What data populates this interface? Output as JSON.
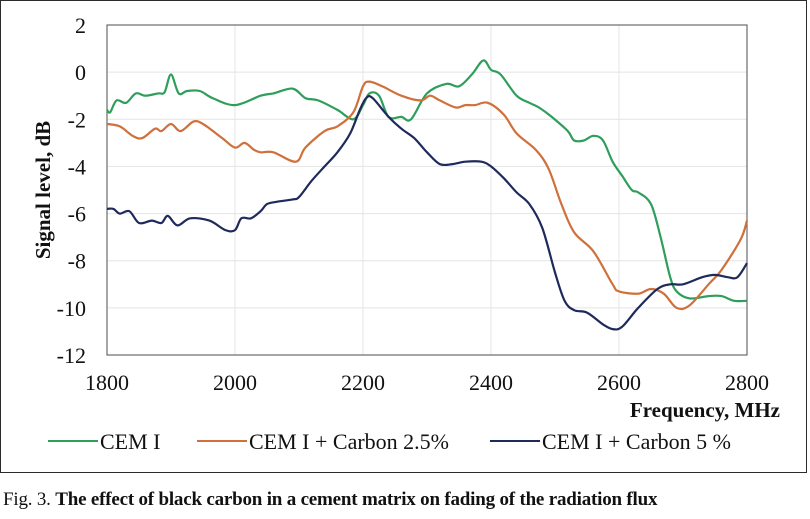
{
  "chart_data": {
    "type": "line",
    "title": "",
    "xlabel": "Frequency, MHz",
    "ylabel": "Signal level, dB",
    "xlim": [
      1800,
      2800
    ],
    "ylim": [
      -12,
      2
    ],
    "xticks": [
      1800,
      2000,
      2200,
      2400,
      2600,
      2800
    ],
    "yticks": [
      2,
      0,
      -2,
      -4,
      -6,
      -8,
      -10,
      -12
    ],
    "grid": true,
    "legend_position": "bottom",
    "series": [
      {
        "name": "CEM I",
        "color": "#2e9e5b",
        "x": [
          1800,
          1805,
          1815,
          1830,
          1845,
          1860,
          1880,
          1890,
          1900,
          1912,
          1925,
          1945,
          1965,
          2000,
          2040,
          2060,
          2090,
          2110,
          2130,
          2160,
          2185,
          2200,
          2210,
          2225,
          2240,
          2260,
          2275,
          2300,
          2330,
          2350,
          2370,
          2388,
          2400,
          2415,
          2440,
          2460,
          2475,
          2495,
          2520,
          2530,
          2545,
          2560,
          2575,
          2590,
          2605,
          2620,
          2630,
          2650,
          2665,
          2680,
          2690,
          2710,
          2740,
          2760,
          2780,
          2800
        ],
        "y": [
          -1.6,
          -1.7,
          -1.2,
          -1.3,
          -0.9,
          -1.0,
          -0.9,
          -0.85,
          -0.1,
          -0.9,
          -0.8,
          -0.8,
          -1.1,
          -1.4,
          -1.0,
          -0.9,
          -0.7,
          -1.1,
          -1.2,
          -1.6,
          -2.0,
          -1.4,
          -0.9,
          -1.0,
          -1.9,
          -1.9,
          -2.0,
          -0.9,
          -0.5,
          -0.6,
          -0.1,
          0.5,
          0.1,
          -0.1,
          -1.0,
          -1.3,
          -1.5,
          -1.9,
          -2.5,
          -2.9,
          -2.9,
          -2.7,
          -2.9,
          -3.8,
          -4.4,
          -5.0,
          -5.1,
          -5.6,
          -7.0,
          -8.7,
          -9.3,
          -9.6,
          -9.5,
          -9.5,
          -9.7,
          -9.7
        ]
      },
      {
        "name": "CEM I + Carbon 2.5%",
        "color": "#d0703a",
        "x": [
          1800,
          1820,
          1840,
          1855,
          1875,
          1885,
          1900,
          1915,
          1935,
          1950,
          1980,
          2000,
          2015,
          2030,
          2040,
          2060,
          2095,
          2110,
          2140,
          2160,
          2185,
          2200,
          2210,
          2230,
          2260,
          2290,
          2305,
          2320,
          2345,
          2360,
          2375,
          2395,
          2420,
          2440,
          2470,
          2490,
          2510,
          2530,
          2560,
          2590,
          2600,
          2630,
          2650,
          2670,
          2690,
          2710,
          2740,
          2760,
          2790,
          2800
        ],
        "y": [
          -2.2,
          -2.3,
          -2.7,
          -2.8,
          -2.4,
          -2.5,
          -2.2,
          -2.5,
          -2.1,
          -2.2,
          -2.8,
          -3.2,
          -3.0,
          -3.3,
          -3.4,
          -3.4,
          -3.8,
          -3.2,
          -2.5,
          -2.3,
          -1.7,
          -0.6,
          -0.4,
          -0.6,
          -1.0,
          -1.2,
          -1.0,
          -1.2,
          -1.5,
          -1.4,
          -1.4,
          -1.3,
          -1.8,
          -2.6,
          -3.3,
          -4.1,
          -5.6,
          -6.8,
          -7.6,
          -9.0,
          -9.3,
          -9.4,
          -9.2,
          -9.4,
          -10.0,
          -9.9,
          -9.0,
          -8.4,
          -7.1,
          -6.3
        ]
      },
      {
        "name": "CEM I + Carbon 5 %",
        "color": "#1f2a5c",
        "x": [
          1800,
          1810,
          1820,
          1835,
          1850,
          1870,
          1885,
          1895,
          1910,
          1930,
          1960,
          1985,
          2000,
          2010,
          2025,
          2040,
          2050,
          2065,
          2090,
          2100,
          2120,
          2140,
          2160,
          2180,
          2195,
          2205,
          2215,
          2240,
          2260,
          2280,
          2300,
          2320,
          2340,
          2360,
          2385,
          2400,
          2420,
          2440,
          2460,
          2480,
          2500,
          2515,
          2530,
          2550,
          2575,
          2590,
          2605,
          2630,
          2660,
          2680,
          2700,
          2730,
          2750,
          2770,
          2785,
          2800
        ],
        "y": [
          -5.8,
          -5.8,
          -6.0,
          -5.9,
          -6.4,
          -6.3,
          -6.4,
          -6.1,
          -6.5,
          -6.2,
          -6.3,
          -6.7,
          -6.7,
          -6.2,
          -6.2,
          -5.9,
          -5.6,
          -5.5,
          -5.4,
          -5.3,
          -4.6,
          -4.0,
          -3.4,
          -2.6,
          -1.6,
          -1.1,
          -1.1,
          -1.9,
          -2.4,
          -2.8,
          -3.4,
          -3.9,
          -3.9,
          -3.8,
          -3.8,
          -4.0,
          -4.5,
          -5.1,
          -5.6,
          -6.6,
          -8.5,
          -9.7,
          -10.1,
          -10.2,
          -10.7,
          -10.9,
          -10.8,
          -10.0,
          -9.2,
          -9.0,
          -9.0,
          -8.7,
          -8.6,
          -8.7,
          -8.7,
          -8.1
        ]
      }
    ]
  },
  "caption": {
    "prefix": "Fig. 3. ",
    "text": "The effect of black carbon in a cement matrix on fading of the radiation flux"
  }
}
